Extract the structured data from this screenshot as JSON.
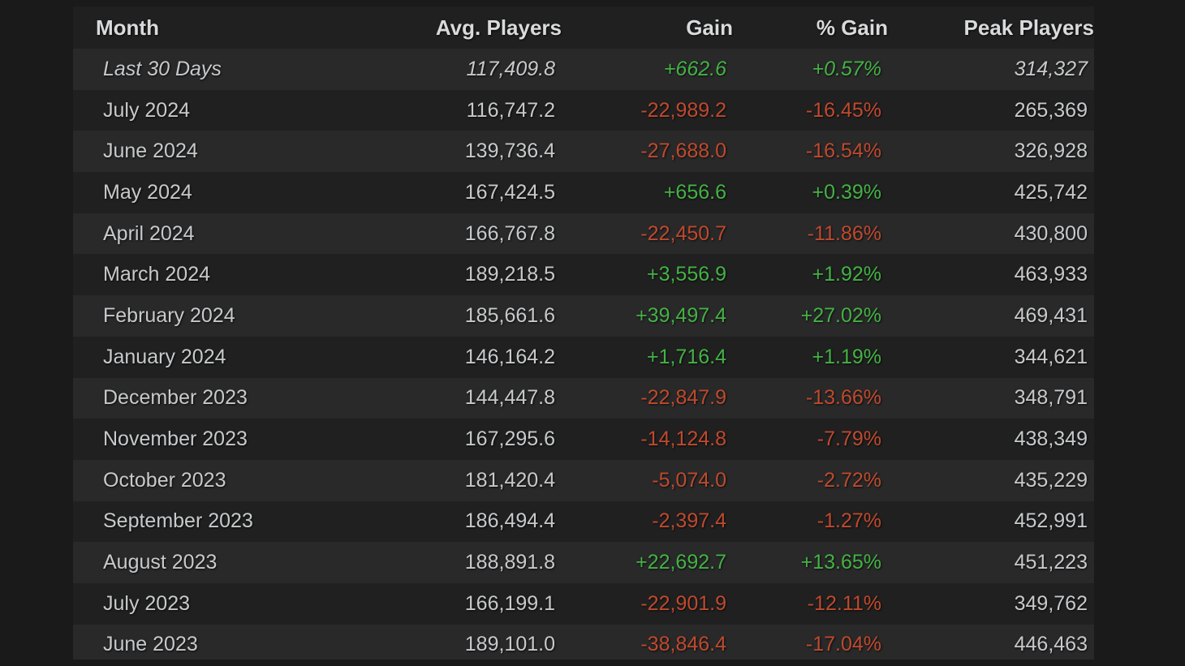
{
  "colors": {
    "page_background": "#1a1a1a",
    "table_background": "#202021",
    "row_stripe": "#29292a",
    "header_text": "#d9dadb",
    "cell_text": "#c7c9ca",
    "positive": "#44b244",
    "negative": "#bf4a2d"
  },
  "table": {
    "columns": [
      "Month",
      "Avg. Players",
      "Gain",
      "% Gain",
      "Peak Players"
    ],
    "rows": [
      {
        "month": "Last 30 Days",
        "avg": "117,409.8",
        "gain": "+662.6",
        "pct": "+0.57%",
        "peak": "314,327",
        "trend": "up",
        "italic": true
      },
      {
        "month": "July 2024",
        "avg": "116,747.2",
        "gain": "-22,989.2",
        "pct": "-16.45%",
        "peak": "265,369",
        "trend": "down",
        "italic": false
      },
      {
        "month": "June 2024",
        "avg": "139,736.4",
        "gain": "-27,688.0",
        "pct": "-16.54%",
        "peak": "326,928",
        "trend": "down",
        "italic": false
      },
      {
        "month": "May 2024",
        "avg": "167,424.5",
        "gain": "+656.6",
        "pct": "+0.39%",
        "peak": "425,742",
        "trend": "up",
        "italic": false
      },
      {
        "month": "April 2024",
        "avg": "166,767.8",
        "gain": "-22,450.7",
        "pct": "-11.86%",
        "peak": "430,800",
        "trend": "down",
        "italic": false
      },
      {
        "month": "March 2024",
        "avg": "189,218.5",
        "gain": "+3,556.9",
        "pct": "+1.92%",
        "peak": "463,933",
        "trend": "up",
        "italic": false
      },
      {
        "month": "February 2024",
        "avg": "185,661.6",
        "gain": "+39,497.4",
        "pct": "+27.02%",
        "peak": "469,431",
        "trend": "up",
        "italic": false
      },
      {
        "month": "January 2024",
        "avg": "146,164.2",
        "gain": "+1,716.4",
        "pct": "+1.19%",
        "peak": "344,621",
        "trend": "up",
        "italic": false
      },
      {
        "month": "December 2023",
        "avg": "144,447.8",
        "gain": "-22,847.9",
        "pct": "-13.66%",
        "peak": "348,791",
        "trend": "down",
        "italic": false
      },
      {
        "month": "November 2023",
        "avg": "167,295.6",
        "gain": "-14,124.8",
        "pct": "-7.79%",
        "peak": "438,349",
        "trend": "down",
        "italic": false
      },
      {
        "month": "October 2023",
        "avg": "181,420.4",
        "gain": "-5,074.0",
        "pct": "-2.72%",
        "peak": "435,229",
        "trend": "down",
        "italic": false
      },
      {
        "month": "September 2023",
        "avg": "186,494.4",
        "gain": "-2,397.4",
        "pct": "-1.27%",
        "peak": "452,991",
        "trend": "down",
        "italic": false
      },
      {
        "month": "August 2023",
        "avg": "188,891.8",
        "gain": "+22,692.7",
        "pct": "+13.65%",
        "peak": "451,223",
        "trend": "up",
        "italic": false
      },
      {
        "month": "July 2023",
        "avg": "166,199.1",
        "gain": "-22,901.9",
        "pct": "-12.11%",
        "peak": "349,762",
        "trend": "down",
        "italic": false
      },
      {
        "month": "June 2023",
        "avg": "189,101.0",
        "gain": "-38,846.4",
        "pct": "-17.04%",
        "peak": "446,463",
        "trend": "down",
        "italic": false
      }
    ]
  }
}
